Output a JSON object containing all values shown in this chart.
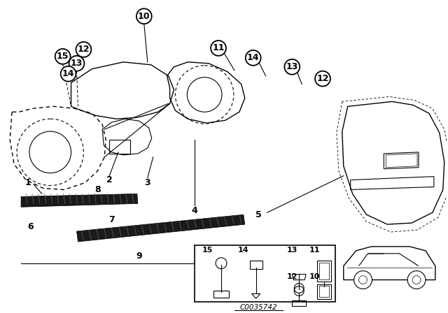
{
  "bg_color": "#ffffff",
  "line_color": "#000000",
  "diagram_code": "C0035742",
  "fig_width": 6.4,
  "fig_height": 4.48,
  "dpi": 100
}
